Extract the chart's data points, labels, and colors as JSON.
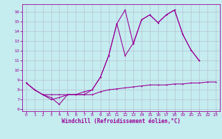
{
  "xlabel": "Windchill (Refroidissement éolien,°C)",
  "background_color": "#c5ecee",
  "grid_color": "#b0b8d0",
  "line_color": "#990099",
  "xlim": [
    -0.5,
    23.5
  ],
  "ylim": [
    5.8,
    16.8
  ],
  "xticks": [
    0,
    1,
    2,
    3,
    4,
    5,
    6,
    7,
    8,
    9,
    10,
    11,
    12,
    13,
    14,
    15,
    16,
    17,
    18,
    19,
    20,
    21,
    22,
    23
  ],
  "yticks": [
    6,
    7,
    8,
    9,
    10,
    11,
    12,
    13,
    14,
    15,
    16
  ],
  "line1_y": [
    8.7,
    8.0,
    7.5,
    7.2,
    6.5,
    7.5,
    7.5,
    7.5,
    8.0,
    9.3,
    11.5,
    14.8,
    16.2,
    12.7,
    15.2,
    15.7,
    14.9,
    15.7,
    16.2,
    13.7,
    12.1,
    11.0,
    null,
    null
  ],
  "line2_y": [
    8.7,
    8.0,
    7.5,
    7.0,
    7.2,
    7.5,
    7.5,
    7.8,
    8.0,
    9.3,
    11.5,
    14.8,
    11.5,
    12.8,
    15.2,
    15.7,
    14.9,
    15.7,
    16.2,
    13.7,
    12.1,
    11.0,
    null,
    null
  ],
  "line3_y": [
    8.7,
    8.0,
    7.5,
    7.5,
    7.5,
    7.5,
    7.5,
    7.5,
    7.5,
    7.8,
    8.0,
    8.1,
    8.2,
    8.3,
    8.4,
    8.5,
    8.5,
    8.5,
    8.6,
    8.6,
    8.7,
    8.7,
    8.8,
    8.8
  ],
  "tick_fontsize": 4.5,
  "xlabel_fontsize": 5.5,
  "marker_size": 2.0,
  "linewidth": 0.8
}
